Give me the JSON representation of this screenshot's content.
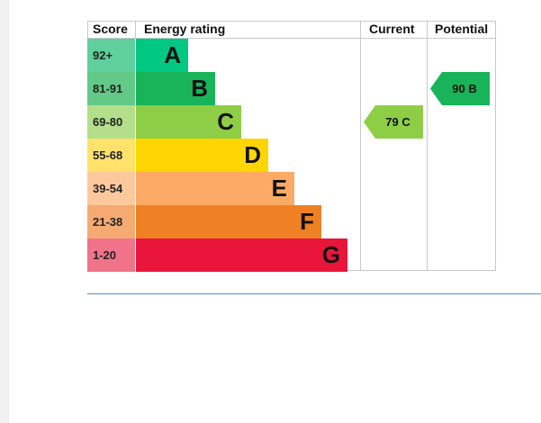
{
  "chart_data": {
    "type": "table",
    "columns": [
      "Score",
      "Energy rating",
      "Current",
      "Potential"
    ],
    "bands": [
      {
        "score": "92+",
        "letter": "A",
        "color": "#00c781",
        "score_color": "#5fcf9b"
      },
      {
        "score": "81-91",
        "letter": "B",
        "color": "#19b459",
        "score_color": "#62c987"
      },
      {
        "score": "69-80",
        "letter": "C",
        "color": "#8dce46",
        "score_color": "#b3df8a"
      },
      {
        "score": "55-68",
        "letter": "D",
        "color": "#ffd500",
        "score_color": "#ffe26b"
      },
      {
        "score": "39-54",
        "letter": "E",
        "color": "#fcaa65",
        "score_color": "#fdc99c"
      },
      {
        "score": "21-38",
        "letter": "F",
        "color": "#ef8023",
        "score_color": "#f5aa72"
      },
      {
        "score": "1-20",
        "letter": "G",
        "color": "#e9153b",
        "score_color": "#f0738a"
      }
    ],
    "current": {
      "value": 79,
      "letter": "C",
      "label": "79  C",
      "color": "#8dce46"
    },
    "potential": {
      "value": 90,
      "letter": "B",
      "label": "90  B",
      "color": "#19b459"
    }
  }
}
